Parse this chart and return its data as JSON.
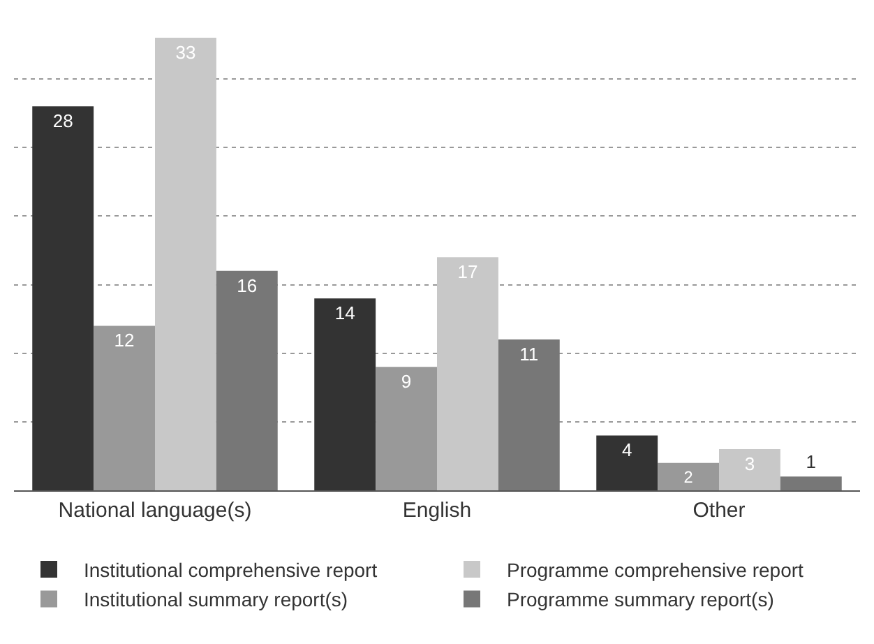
{
  "chart_data": {
    "type": "bar",
    "categories": [
      "National language(s)",
      "English",
      "Other"
    ],
    "series": [
      {
        "name": "Institutional comprehensive report",
        "color": "#333333",
        "values": [
          28,
          14,
          4
        ]
      },
      {
        "name": "Institutional summary report(s)",
        "color": "#999999",
        "values": [
          12,
          9,
          2
        ]
      },
      {
        "name": "Programme comprehensive report",
        "color": "#c8c8c8",
        "values": [
          33,
          17,
          3
        ]
      },
      {
        "name": "Programme summary report(s)",
        "color": "#777777",
        "values": [
          16,
          11,
          1
        ]
      }
    ],
    "yticks": [
      {
        "value": 5,
        "label": null
      },
      {
        "value": 10,
        "label": null
      },
      {
        "value": 15,
        "label": null
      },
      {
        "value": 20,
        "label": null
      },
      {
        "value": 25,
        "label": null
      },
      {
        "value": 30,
        "label": null
      }
    ],
    "grid": "y",
    "legend": "bottom",
    "data_labels": true,
    "tick_labels": "x"
  }
}
